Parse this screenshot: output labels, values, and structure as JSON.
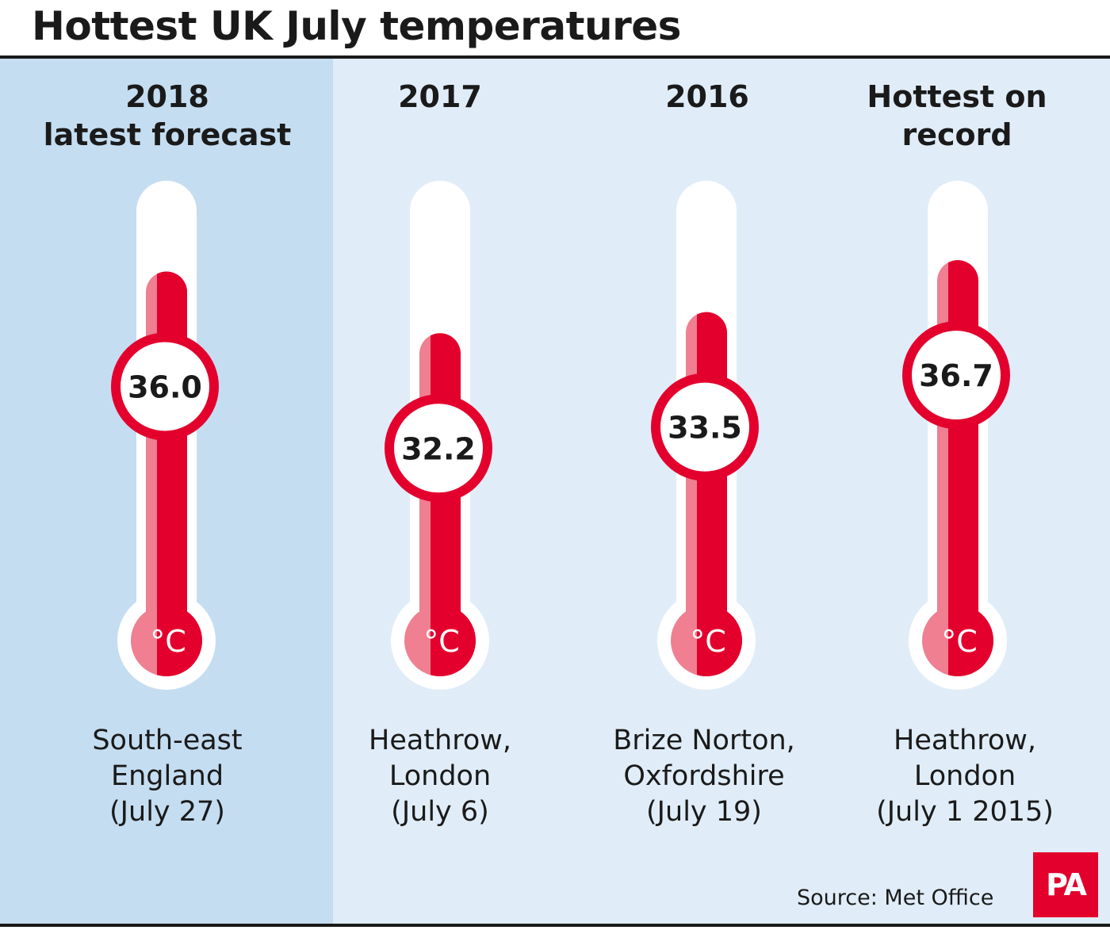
{
  "title": "Hottest UK July temperatures",
  "unit": "°C",
  "source": "Source: Met Office",
  "logo": "PA",
  "colors": {
    "highlight_panel": "#c5ddf1",
    "panel": "#e0edf8",
    "mercury": "#e3002d",
    "mercury_light": "#ef7f91",
    "tube": "#ffffff"
  },
  "chart_data": {
    "type": "bar",
    "title": "Hottest UK July temperatures",
    "categories": [
      "2018\nlatest forecast",
      "2017",
      "2016",
      "Hottest on\nrecord"
    ],
    "series": [
      {
        "values": [
          36.0,
          32.2,
          33.5,
          36.7
        ]
      }
    ],
    "value_labels": [
      "36.0",
      "32.2",
      "33.5",
      "36.7"
    ],
    "locations": [
      "South-east\nEngland\n(July 27)",
      "Heathrow,\nLondon\n(July 6)",
      "Brize Norton,\nOxfordshire\n(July 19)",
      "Heathrow,\nLondon\n(July 1 2015)"
    ],
    "ylim": [
      0,
      40
    ],
    "grid": false,
    "legend": "none"
  }
}
